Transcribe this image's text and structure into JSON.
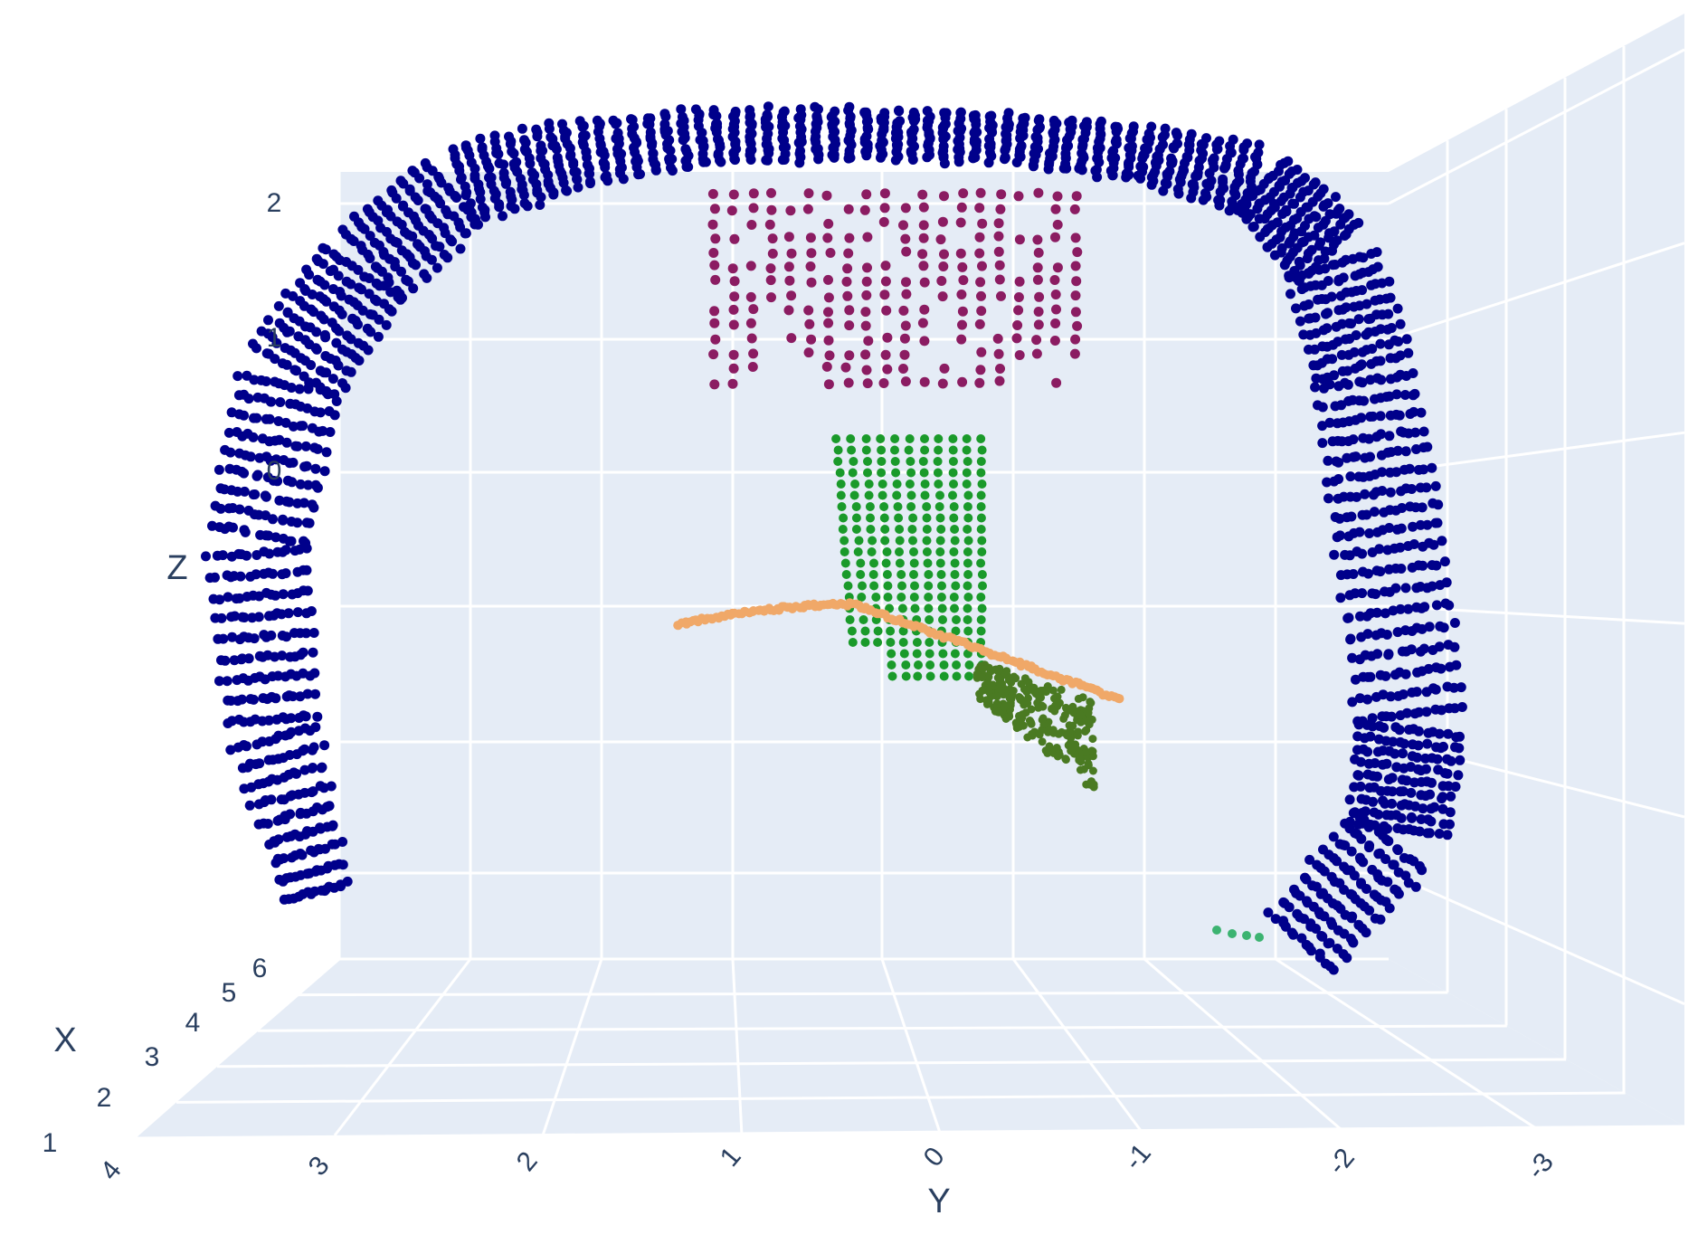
{
  "chart_data": {
    "type": "scatter3d",
    "title": "",
    "axes": {
      "x": {
        "label": "X",
        "ticks": [
          "1",
          "2",
          "3",
          "4",
          "5",
          "6"
        ]
      },
      "y": {
        "label": "Y",
        "ticks": [
          "4",
          "3",
          "2",
          "1",
          "0",
          "-1",
          "-2",
          "-3"
        ],
        "range": [
          4,
          -3.5
        ]
      },
      "z": {
        "label": "Z",
        "ticks": [
          "2",
          "1",
          "0"
        ]
      }
    },
    "background_color": "#e5ecf6",
    "grid": true,
    "series": [
      {
        "color": "#00008b",
        "shape": "arch",
        "points": 3200
      },
      {
        "color": "#8b1c62",
        "shape": "block",
        "y_range": [
          0.9,
          -0.9
        ],
        "z_range": [
          0.8,
          2.0
        ]
      },
      {
        "color": "#1a9a2a",
        "shape": "column",
        "y_range": [
          0.5,
          -0.3
        ],
        "z_range": [
          -1.2,
          0.3
        ]
      },
      {
        "color": "#f0a868",
        "shape": "curve",
        "y_range": [
          1.3,
          -1.0
        ]
      },
      {
        "color": "#4a7a22",
        "shape": "wedge",
        "y_range": [
          -0.3,
          -1.0
        ]
      },
      {
        "color": "#3cb371",
        "shape": "small-cluster",
        "y_range": [
          -1.5,
          -1.8
        ]
      }
    ]
  }
}
